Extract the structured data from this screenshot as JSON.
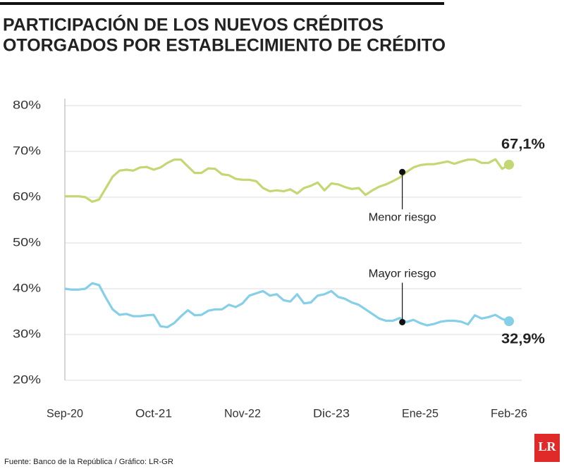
{
  "chart_data": {
    "type": "line",
    "title": [
      "PARTICIPACIÓN DE LOS NUEVOS CRÉDITOS",
      "OTORGADOS POR ESTABLECIMIENTO DE CRÉDITO"
    ],
    "categories": [
      "Sep-20",
      null,
      null,
      null,
      null,
      null,
      null,
      null,
      null,
      null,
      null,
      null,
      null,
      "Oct-21",
      null,
      null,
      null,
      null,
      null,
      null,
      null,
      null,
      null,
      null,
      null,
      null,
      "Nov-22",
      null,
      null,
      null,
      null,
      null,
      null,
      null,
      null,
      null,
      null,
      null,
      null,
      "Dic-23",
      null,
      null,
      null,
      null,
      null,
      null,
      null,
      null,
      null,
      null,
      null,
      null,
      "Ene-25",
      null,
      null,
      null,
      null,
      null,
      null,
      null,
      null,
      null,
      null,
      null,
      null,
      "Feb-26"
    ],
    "series": [
      {
        "name": "Menor riesgo",
        "color": "#c3d873",
        "values": [
          60.2,
          60.2,
          60.2,
          60,
          59,
          59.5,
          62,
          64.5,
          65.8,
          66,
          65.8,
          66.5,
          66.6,
          66,
          66.5,
          67.5,
          68.2,
          68.2,
          66.7,
          65.3,
          65.3,
          66.3,
          66.2,
          65,
          64.8,
          64,
          63.8,
          63.8,
          63.5,
          62,
          61.3,
          61.5,
          61.3,
          61.7,
          60.8,
          62,
          62.5,
          63.2,
          61.5,
          63,
          62.8,
          62.2,
          61.8,
          62,
          60.5,
          61.5,
          62.3,
          62.8,
          63.5,
          64.3,
          65.5,
          66.5,
          67,
          67.2,
          67.2,
          67.5,
          67.8,
          67.3,
          67.8,
          68.2,
          68.2,
          67.5,
          67.5,
          68.3,
          66.2,
          67.1
        ],
        "value_labels": [
          null,
          null,
          null,
          null,
          null,
          null,
          null,
          null,
          null,
          null,
          null,
          null,
          null,
          null,
          null,
          null,
          null,
          null,
          null,
          null,
          null,
          null,
          null,
          null,
          null,
          null,
          null,
          null,
          null,
          null,
          null,
          null,
          null,
          null,
          null,
          null,
          null,
          null,
          null,
          null,
          null,
          null,
          null,
          null,
          null,
          null,
          null,
          null,
          null,
          null,
          null,
          null,
          null,
          null,
          null,
          null,
          null,
          null,
          null,
          null,
          null,
          null,
          null,
          null,
          null,
          "67,1%"
        ]
      },
      {
        "name": "Mayor riesgo",
        "color": "#86cfe9",
        "values": [
          40,
          39.8,
          39.8,
          40,
          41.2,
          40.8,
          38,
          35.5,
          34.3,
          34.5,
          34,
          34,
          34.2,
          34.3,
          31.8,
          31.6,
          32.5,
          34,
          35.3,
          34.2,
          34.3,
          35.2,
          35.5,
          35.5,
          36.5,
          36,
          36.8,
          38.5,
          39,
          39.5,
          38.5,
          38.8,
          37.5,
          37.2,
          38.8,
          36.8,
          37,
          38.5,
          38.8,
          39.5,
          38.2,
          37.8,
          37,
          36.5,
          35.5,
          34.5,
          33.5,
          33,
          33,
          33.6,
          32.7,
          33.2,
          32.5,
          32,
          32.3,
          32.8,
          33,
          33,
          32.8,
          32.2,
          34.2,
          33.5,
          33.8,
          34.3,
          33.4,
          32.9
        ],
        "value_labels": [
          null,
          null,
          null,
          null,
          null,
          null,
          null,
          null,
          null,
          null,
          null,
          null,
          null,
          null,
          null,
          null,
          null,
          null,
          null,
          null,
          null,
          null,
          null,
          null,
          null,
          null,
          null,
          null,
          null,
          null,
          null,
          null,
          null,
          null,
          null,
          null,
          null,
          null,
          null,
          null,
          null,
          null,
          null,
          null,
          null,
          null,
          null,
          null,
          null,
          null,
          null,
          null,
          null,
          null,
          null,
          null,
          null,
          null,
          null,
          null,
          null,
          null,
          null,
          null,
          null,
          "32,9%"
        ]
      }
    ],
    "ylim": [
      20,
      80
    ],
    "yticks": [
      {
        "value": 20,
        "label": "20%"
      },
      {
        "value": 30,
        "label": "30%"
      },
      {
        "value": 40,
        "label": "40%"
      },
      {
        "value": 50,
        "label": "50%"
      },
      {
        "value": 60,
        "label": "60%"
      },
      {
        "value": 70,
        "label": "70%"
      },
      {
        "value": 80,
        "label": "80%"
      }
    ],
    "grid": true,
    "source": "Fuente: Banco de la República / Gráfico: LR-GR",
    "logo": "LR"
  }
}
